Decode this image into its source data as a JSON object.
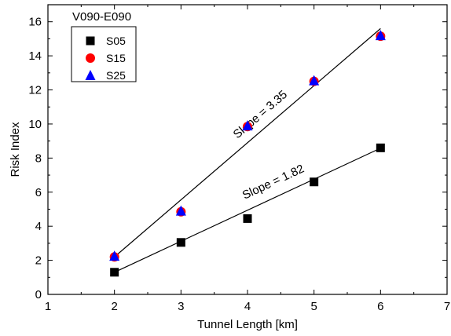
{
  "chart_data": {
    "type": "scatter",
    "title": "V090-E090",
    "xlabel": "Tunnel Length [km]",
    "ylabel": "Risk Index",
    "xlim": [
      1,
      7
    ],
    "ylim": [
      0,
      17
    ],
    "xticks": [
      1,
      2,
      3,
      4,
      5,
      6,
      7
    ],
    "yticks": [
      0,
      2,
      4,
      6,
      8,
      10,
      12,
      14,
      16
    ],
    "grid": false,
    "legend_position": "top-left",
    "series": [
      {
        "name": "S05",
        "marker": "square",
        "color": "#000000",
        "x": [
          2,
          3,
          4,
          5,
          6
        ],
        "y": [
          1.3,
          3.05,
          4.45,
          6.6,
          8.6
        ]
      },
      {
        "name": "S15",
        "marker": "circle",
        "color": "#ff0000",
        "x": [
          2,
          3,
          4,
          5,
          6
        ],
        "y": [
          2.2,
          4.85,
          9.85,
          12.5,
          15.15
        ]
      },
      {
        "name": "S25",
        "marker": "triangle",
        "color": "#0000ff",
        "x": [
          2,
          3,
          4,
          5,
          6
        ],
        "y": [
          2.25,
          4.9,
          9.9,
          12.55,
          15.2
        ]
      }
    ],
    "fit_lines": [
      {
        "label": "Slope = 3.35",
        "x": [
          2,
          6
        ],
        "y": [
          2.2,
          15.6
        ],
        "color": "#000000"
      },
      {
        "label": "Slope = 1.82",
        "x": [
          2,
          6
        ],
        "y": [
          1.3,
          8.58
        ],
        "color": "#000000"
      }
    ]
  }
}
